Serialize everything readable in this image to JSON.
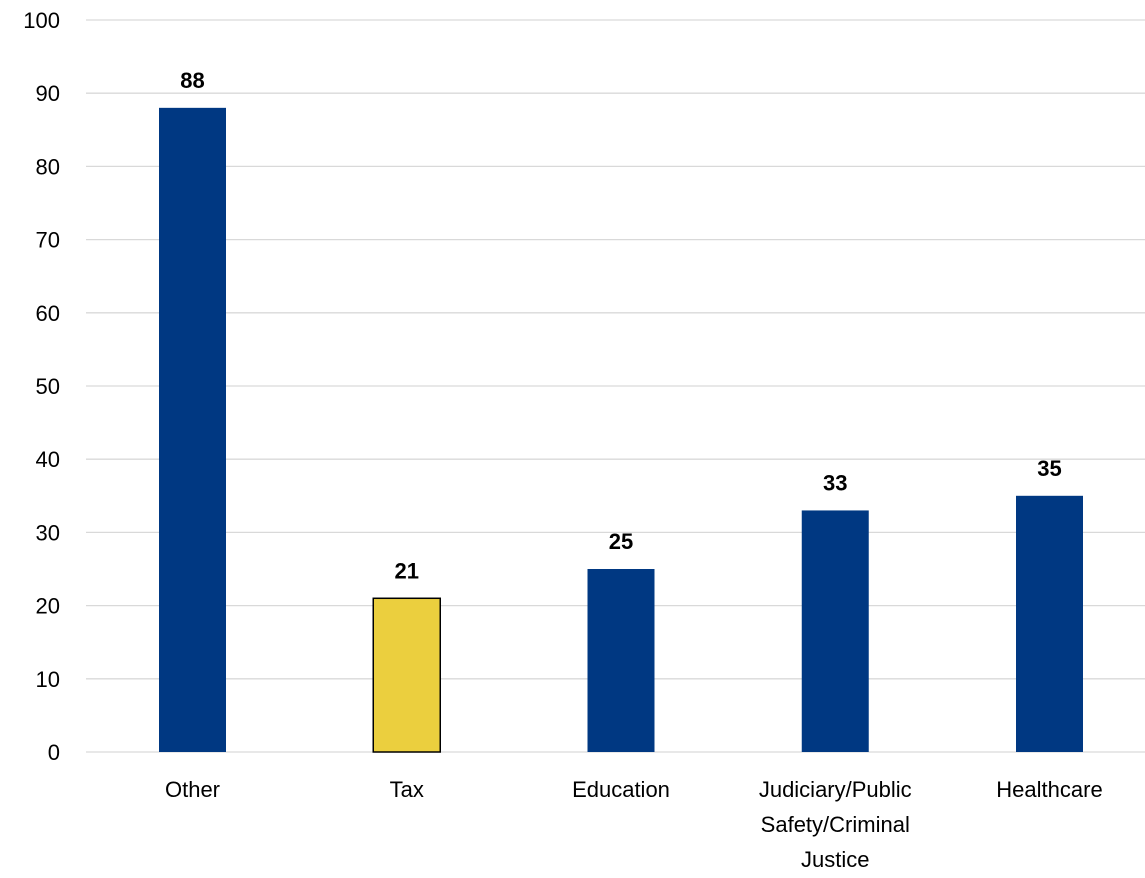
{
  "chart_data": {
    "type": "bar",
    "title": "",
    "xlabel": "",
    "ylabel": "",
    "categories": [
      "Other",
      "Tax",
      "Education",
      "Judiciary/Public Safety/Criminal Justice",
      "Healthcare"
    ],
    "category_label_lines": [
      [
        "Other"
      ],
      [
        "Tax"
      ],
      [
        "Education"
      ],
      [
        "Judiciary/Public",
        "Safety/Criminal",
        "Justice"
      ],
      [
        "Healthcare"
      ]
    ],
    "values": [
      88,
      21,
      25,
      33,
      35
    ],
    "data_labels": [
      "88",
      "21",
      "25",
      "33",
      "35"
    ],
    "bar_colors": [
      "#003882",
      "#ebcf3e",
      "#003882",
      "#003882",
      "#003882"
    ],
    "highlight_category": "Tax",
    "ylim": [
      0,
      100
    ],
    "yticks": [
      0,
      10,
      20,
      30,
      40,
      50,
      60,
      70,
      80,
      90,
      100
    ],
    "grid": true,
    "legend": "none"
  }
}
